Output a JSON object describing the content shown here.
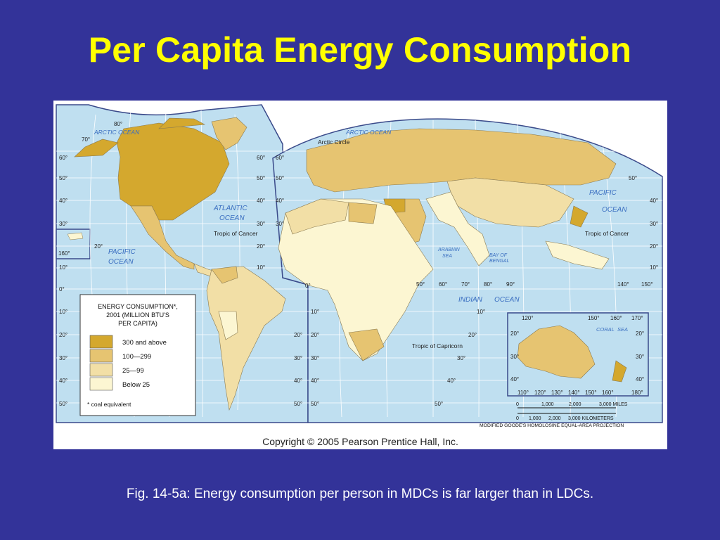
{
  "slide": {
    "title": "Per Capita Energy Consumption",
    "caption": "Fig. 14-5a: Energy consumption per person in MDCs is far larger than in LDCs."
  },
  "map": {
    "copyright": "Copyright © 2005 Pearson Prentice Hall, Inc.",
    "ocean_color": "#bfdff0",
    "oceans": {
      "arctic_left": "ARCTIC OCEAN",
      "arctic_right": "ARCTIC OCEAN",
      "atlantic_1": "ATLANTIC",
      "atlantic_2": "OCEAN",
      "pacific_left_1": "PACIFIC",
      "pacific_left_2": "OCEAN",
      "pacific_right_1": "PACIFIC",
      "pacific_right_2": "OCEAN",
      "indian_1": "INDIAN",
      "indian_2": "OCEAN",
      "arabian_1": "ARABIAN",
      "arabian_2": "SEA",
      "bengal_1": "BAY OF",
      "bengal_2": "BENGAL",
      "coral_1": "CORAL",
      "coral_2": "SEA"
    },
    "lines": {
      "arctic_circle": "Arctic Circle",
      "tropic_cancer_left": "Tropic of Cancer",
      "tropic_cancer_right": "Tropic of Cancer",
      "tropic_capricorn": "Tropic of Capricorn"
    },
    "lat_labels": {
      "l80": "80°",
      "l70": "70°",
      "l60": "60°",
      "l50": "50°",
      "l40": "40°",
      "l30": "30°",
      "l20": "20°",
      "l10": "10°",
      "l0": "0°",
      "s10": "10°",
      "s20": "20°",
      "s30": "30°",
      "s40": "40°",
      "s50": "50°",
      "l160": "160°"
    },
    "lon_labels": {
      "e50": "50°",
      "e60": "60°",
      "e70": "70°",
      "e80": "80°",
      "e90": "90°",
      "e140": "140°",
      "e150": "150°",
      "e0": "0°"
    },
    "inset_labels": {
      "i120": "120°",
      "i150": "150°",
      "i160": "160°",
      "i170": "170°",
      "i20l": "20°",
      "i20r": "20°",
      "i30l": "30°",
      "i30r": "30°",
      "i40l": "40°",
      "i40r": "40°",
      "b110": "110°",
      "b120": "120°",
      "b130": "130°",
      "b140": "140°",
      "b150": "150°",
      "b160": "160°",
      "b180": "180°"
    },
    "legend": {
      "title_1": "ENERGY CONSUMPTION*,",
      "title_2": "2001 (MILLION BTU'S",
      "title_3": "PER CAPITA)",
      "items": [
        {
          "label": "300 and above",
          "color": "#d4a82e"
        },
        {
          "label": "100—299",
          "color": "#e6c471"
        },
        {
          "label": "25—99",
          "color": "#f2dfa6"
        },
        {
          "label": "Below 25",
          "color": "#fcf6d2"
        }
      ],
      "footnote": "* coal equivalent"
    },
    "scale": {
      "miles": [
        "0",
        "1,000",
        "2,000",
        "3,000 MILES"
      ],
      "km": [
        "0",
        "1,000",
        "2,000",
        "3,000 KILOMETERS"
      ],
      "projection": "MODIFIED GOODE'S HOMOLOSINE EQUAL-AREA PROJECTION"
    }
  }
}
